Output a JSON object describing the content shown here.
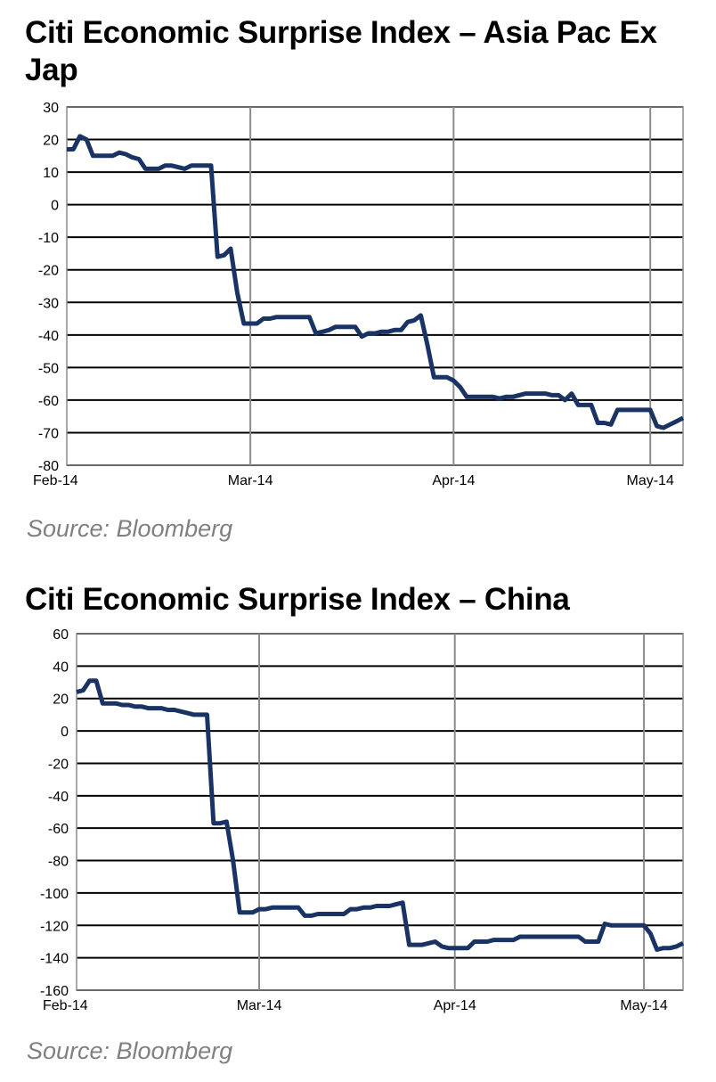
{
  "chart_data": [
    {
      "type": "line",
      "title": "Citi Economic Surprise Index – Asia Pac Ex Jap",
      "source": "Source: Bloomberg",
      "xlabel": "",
      "ylabel": "",
      "ylim": [
        -80,
        30
      ],
      "yticks": [
        "30",
        "20",
        "10",
        "0",
        "-10",
        "-20",
        "-30",
        "-40",
        "-50",
        "-60",
        "-70",
        "-80"
      ],
      "ytick_values": [
        30,
        20,
        10,
        0,
        -10,
        -20,
        -30,
        -40,
        -50,
        -60,
        -70,
        -80
      ],
      "xlim": [
        0,
        94
      ],
      "xticks": [
        {
          "label": "Feb-14",
          "value": 0
        },
        {
          "label": "Mar-14",
          "value": 28
        },
        {
          "label": "Apr-14",
          "value": 59
        },
        {
          "label": "May-14",
          "value": 89
        }
      ],
      "vgrid": [
        28,
        59,
        89
      ],
      "line_color": "#1a3365",
      "series": [
        {
          "name": "CESI Asia Pac ex Japan",
          "x": [
            0,
            1,
            2,
            3,
            4,
            5,
            6,
            7,
            8,
            9,
            10,
            11,
            12,
            13,
            14,
            15,
            16,
            17,
            18,
            19,
            20,
            21,
            22,
            23,
            24,
            25,
            26,
            27,
            28,
            29,
            30,
            31,
            32,
            33,
            34,
            35,
            36,
            37,
            38,
            39,
            40,
            41,
            42,
            43,
            44,
            45,
            46,
            47,
            48,
            49,
            50,
            51,
            52,
            53,
            54,
            55,
            56,
            57,
            58,
            59,
            60,
            61,
            62,
            63,
            64,
            65,
            66,
            67,
            68,
            69,
            70,
            71,
            72,
            73,
            74,
            75,
            76,
            77,
            78,
            79,
            80,
            81,
            82,
            83,
            84,
            85,
            86,
            87,
            88,
            89,
            90,
            91,
            92,
            93,
            94
          ],
          "values": [
            17,
            17,
            21,
            20,
            15,
            15,
            15,
            15,
            16,
            15.5,
            14.5,
            14,
            11,
            11,
            11,
            12,
            12,
            11.5,
            11,
            12,
            12,
            12,
            12,
            -16,
            -15.5,
            -13.5,
            -27,
            -36.5,
            -36.5,
            -36.5,
            -35,
            -35,
            -34.5,
            -34.5,
            -34.5,
            -34.5,
            -34.5,
            -34.5,
            -39.5,
            -39,
            -38.5,
            -37.5,
            -37.5,
            -37.5,
            -37.5,
            -40.5,
            -39.5,
            -39.5,
            -39,
            -39,
            -38.5,
            -38.5,
            -36,
            -35.5,
            -34,
            -43,
            -53,
            -53,
            -53,
            -54,
            -56,
            -59,
            -59,
            -59,
            -59,
            -59,
            -59.5,
            -59,
            -59,
            -58.5,
            -58,
            -58,
            -58,
            -58,
            -58.5,
            -58.5,
            -60,
            -58,
            -61.5,
            -61.5,
            -61.5,
            -67,
            -67,
            -67.5,
            -63,
            -63,
            -63,
            -63,
            -63,
            -63,
            -68,
            -68.5,
            -67.5,
            -66.5,
            -65.5
          ]
        }
      ]
    },
    {
      "type": "line",
      "title": "Citi Economic Surprise Index – China",
      "source": "Source: Bloomberg",
      "xlabel": "",
      "ylabel": "",
      "ylim": [
        -160,
        60
      ],
      "yticks": [
        "60",
        "40",
        "20",
        "0",
        "-20",
        "-40",
        "-60",
        "-80",
        "-100",
        "-120",
        "-140",
        "-160"
      ],
      "ytick_values": [
        60,
        40,
        20,
        0,
        -20,
        -40,
        -60,
        -80,
        -100,
        -120,
        -140,
        -160
      ],
      "xlim": [
        0,
        93
      ],
      "xticks": [
        {
          "label": "Feb-14",
          "value": 0
        },
        {
          "label": "Mar-14",
          "value": 28
        },
        {
          "label": "Apr-14",
          "value": 58
        },
        {
          "label": "May-14",
          "value": 87
        }
      ],
      "vgrid": [
        28,
        58,
        87
      ],
      "line_color": "#1a3365",
      "series": [
        {
          "name": "CESI China",
          "x": [
            0,
            1,
            2,
            3,
            4,
            5,
            6,
            7,
            8,
            9,
            10,
            11,
            12,
            13,
            14,
            15,
            16,
            17,
            18,
            19,
            20,
            21,
            22,
            23,
            24,
            25,
            26,
            27,
            28,
            29,
            30,
            31,
            32,
            33,
            34,
            35,
            36,
            37,
            38,
            39,
            40,
            41,
            42,
            43,
            44,
            45,
            46,
            47,
            48,
            49,
            50,
            51,
            52,
            53,
            54,
            55,
            56,
            57,
            58,
            59,
            60,
            61,
            62,
            63,
            64,
            65,
            66,
            67,
            68,
            69,
            70,
            71,
            72,
            73,
            74,
            75,
            76,
            77,
            78,
            79,
            80,
            81,
            82,
            83,
            84,
            85,
            86,
            87,
            88,
            89,
            90,
            91,
            92,
            93
          ],
          "values": [
            24,
            25,
            31,
            31,
            17,
            17,
            17,
            16,
            16,
            15,
            15,
            14,
            14,
            14,
            13,
            13,
            12,
            11,
            10,
            10,
            10,
            -57,
            -57,
            -56,
            -80,
            -112,
            -112,
            -112,
            -110,
            -110,
            -109,
            -109,
            -109,
            -109,
            -109,
            -114,
            -114,
            -113,
            -113,
            -113,
            -113,
            -113,
            -110,
            -110,
            -109,
            -109,
            -108,
            -108,
            -108,
            -107,
            -106,
            -132,
            -132,
            -132,
            -131,
            -130,
            -133,
            -134,
            -134,
            -134,
            -134,
            -130,
            -130,
            -130,
            -129,
            -129,
            -129,
            -129,
            -127,
            -127,
            -127,
            -127,
            -127,
            -127,
            -127,
            -127,
            -127,
            -127,
            -130,
            -130,
            -130,
            -119,
            -120,
            -120,
            -120,
            -120,
            -120,
            -120,
            -125,
            -135,
            -134,
            -134,
            -133,
            -131
          ]
        }
      ]
    }
  ]
}
